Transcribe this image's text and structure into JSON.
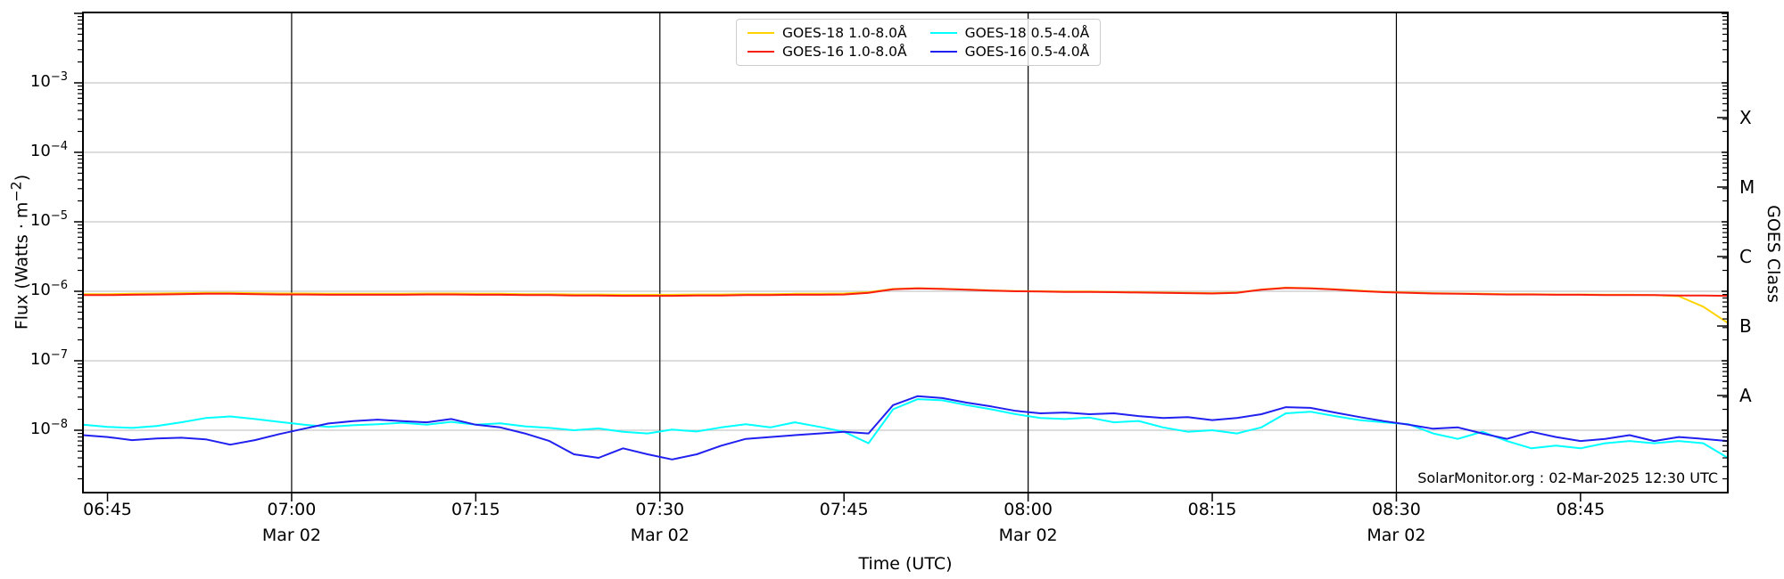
{
  "chart_data": {
    "type": "line",
    "title": "",
    "xlabel": "Time (UTC)",
    "ylabel_parts": {
      "pre": "Flux (Watts · m",
      "sup": "−2",
      "post": ")"
    },
    "y2label": "GOES Class",
    "y_axis": {
      "scale": "log",
      "base_text": "10",
      "tick_exponents": [
        -3,
        -4,
        -5,
        -6,
        -7,
        -8
      ],
      "ylim": [
        1.2e-09,
        0.01
      ],
      "grid": true
    },
    "x_axis": {
      "start": "06:43",
      "end": "08:57",
      "ticks": [
        {
          "time": "06:45",
          "date": ""
        },
        {
          "time": "07:00",
          "date": "Mar 02"
        },
        {
          "time": "07:15",
          "date": ""
        },
        {
          "time": "07:30",
          "date": "Mar 02"
        },
        {
          "time": "07:45",
          "date": ""
        },
        {
          "time": "08:00",
          "date": "Mar 02"
        },
        {
          "time": "08:15",
          "date": ""
        },
        {
          "time": "08:30",
          "date": "Mar 02"
        },
        {
          "time": "08:45",
          "date": ""
        }
      ],
      "vlines": [
        "07:00",
        "07:30",
        "08:00",
        "08:30"
      ]
    },
    "goes_classes": [
      {
        "label": "X",
        "center_exponent": -3.5
      },
      {
        "label": "M",
        "center_exponent": -4.5
      },
      {
        "label": "C",
        "center_exponent": -5.5
      },
      {
        "label": "B",
        "center_exponent": -6.5
      },
      {
        "label": "A",
        "center_exponent": -7.5
      }
    ],
    "legend_position": "top-center",
    "annotation": "SolarMonitor.org : 02-Mar-2025 12:30 UTC",
    "colors": {
      "goes18_long": "#ffd200",
      "goes16_long": "#f81e10",
      "goes18_short": "#00ffff",
      "goes16_short": "#2020f0",
      "grid": "#c8c8c8",
      "axis": "#000000"
    },
    "series": [
      {
        "name": "GOES-18 1.0-8.0Å",
        "color_key": "goes18_long",
        "start": "06:43",
        "step_min": 2,
        "values": [
          9.1e-07,
          9.1e-07,
          9.2e-07,
          9.3e-07,
          9.4e-07,
          9.5e-07,
          9.5e-07,
          9.4e-07,
          9.3e-07,
          9.3e-07,
          9.2e-07,
          9.2e-07,
          9.2e-07,
          9.2e-07,
          9.3e-07,
          9.3e-07,
          9.2e-07,
          9.2e-07,
          9.1e-07,
          9.1e-07,
          9e-07,
          9e-07,
          8.9e-07,
          8.9e-07,
          8.9e-07,
          9e-07,
          9e-07,
          9.1e-07,
          9.1e-07,
          9.2e-07,
          9.2e-07,
          9.3e-07,
          9.7e-07,
          1.08e-06,
          1.11e-06,
          1.09e-06,
          1.06e-06,
          1.03e-06,
          1.01e-06,
          1e-06,
          9.9e-07,
          9.9e-07,
          9.8e-07,
          9.7e-07,
          9.6e-07,
          9.5e-07,
          9.4e-07,
          9.6e-07,
          1.06e-06,
          1.13e-06,
          1.11e-06,
          1.07e-06,
          1.02e-06,
          9.8e-07,
          9.6e-07,
          9.4e-07,
          9.3e-07,
          9.2e-07,
          9.1e-07,
          9.1e-07,
          9e-07,
          9e-07,
          8.9e-07,
          8.9e-07,
          8.8e-07,
          8.5e-07,
          6e-07,
          3.5e-07
        ]
      },
      {
        "name": "GOES-16 1.0-8.0Å",
        "color_key": "goes16_long",
        "start": "06:43",
        "step_min": 2,
        "values": [
          8.8e-07,
          8.8e-07,
          8.9e-07,
          9e-07,
          9.1e-07,
          9.2e-07,
          9.2e-07,
          9.1e-07,
          9e-07,
          9e-07,
          8.9e-07,
          8.9e-07,
          8.9e-07,
          8.9e-07,
          9e-07,
          9e-07,
          8.9e-07,
          8.9e-07,
          8.8e-07,
          8.8e-07,
          8.7e-07,
          8.7e-07,
          8.6e-07,
          8.6e-07,
          8.6e-07,
          8.7e-07,
          8.7e-07,
          8.8e-07,
          8.8e-07,
          8.9e-07,
          8.9e-07,
          9e-07,
          9.5e-07,
          1.07e-06,
          1.1e-06,
          1.08e-06,
          1.05e-06,
          1.02e-06,
          1e-06,
          9.9e-07,
          9.8e-07,
          9.8e-07,
          9.7e-07,
          9.6e-07,
          9.5e-07,
          9.4e-07,
          9.3e-07,
          9.5e-07,
          1.05e-06,
          1.12e-06,
          1.1e-06,
          1.06e-06,
          1.01e-06,
          9.7e-07,
          9.5e-07,
          9.3e-07,
          9.2e-07,
          9.1e-07,
          9e-07,
          9e-07,
          8.9e-07,
          8.9e-07,
          8.8e-07,
          8.8e-07,
          8.8e-07,
          8.7e-07,
          8.7e-07,
          8.6e-07
        ]
      },
      {
        "name": "GOES-18 0.5-4.0Å",
        "color_key": "goes18_short",
        "start": "06:43",
        "step_min": 2,
        "values": [
          1.2e-08,
          1.12e-08,
          1.08e-08,
          1.15e-08,
          1.3e-08,
          1.5e-08,
          1.58e-08,
          1.45e-08,
          1.32e-08,
          1.2e-08,
          1.12e-08,
          1.18e-08,
          1.22e-08,
          1.28e-08,
          1.2e-08,
          1.32e-08,
          1.2e-08,
          1.26e-08,
          1.14e-08,
          1.08e-08,
          1e-08,
          1.06e-08,
          9.5e-09,
          9e-09,
          1.02e-08,
          9.6e-09,
          1.1e-08,
          1.22e-08,
          1.1e-08,
          1.3e-08,
          1.12e-08,
          9.5e-09,
          6.5e-09,
          2e-08,
          2.8e-08,
          2.7e-08,
          2.3e-08,
          2e-08,
          1.7e-08,
          1.5e-08,
          1.45e-08,
          1.52e-08,
          1.3e-08,
          1.36e-08,
          1.1e-08,
          9.5e-09,
          1e-08,
          9e-09,
          1.1e-08,
          1.75e-08,
          1.85e-08,
          1.6e-08,
          1.4e-08,
          1.3e-08,
          1.22e-08,
          9e-09,
          7.5e-09,
          9.5e-09,
          7e-09,
          5.5e-09,
          6e-09,
          5.5e-09,
          6.5e-09,
          7e-09,
          6.5e-09,
          7e-09,
          6.5e-09,
          4e-09
        ]
      },
      {
        "name": "GOES-16 0.5-4.0Å",
        "color_key": "goes16_short",
        "start": "06:43",
        "step_min": 2,
        "values": [
          8.5e-09,
          8e-09,
          7.2e-09,
          7.6e-09,
          7.8e-09,
          7.4e-09,
          6.2e-09,
          7.2e-09,
          8.8e-09,
          1.05e-08,
          1.25e-08,
          1.35e-08,
          1.42e-08,
          1.35e-08,
          1.3e-08,
          1.45e-08,
          1.2e-08,
          1.1e-08,
          9e-09,
          7e-09,
          4.5e-09,
          4e-09,
          5.5e-09,
          4.5e-09,
          3.8e-09,
          4.5e-09,
          6e-09,
          7.5e-09,
          8e-09,
          8.5e-09,
          9e-09,
          9.5e-09,
          9e-09,
          2.3e-08,
          3.1e-08,
          2.9e-08,
          2.5e-08,
          2.2e-08,
          1.9e-08,
          1.75e-08,
          1.8e-08,
          1.7e-08,
          1.75e-08,
          1.6e-08,
          1.5e-08,
          1.55e-08,
          1.4e-08,
          1.5e-08,
          1.7e-08,
          2.15e-08,
          2.1e-08,
          1.8e-08,
          1.55e-08,
          1.35e-08,
          1.2e-08,
          1.05e-08,
          1.1e-08,
          9e-09,
          7.5e-09,
          9.5e-09,
          8e-09,
          7e-09,
          7.5e-09,
          8.5e-09,
          7e-09,
          8e-09,
          7.5e-09,
          7e-09
        ]
      }
    ],
    "legend": [
      {
        "label": "GOES-18 1.0-8.0Å",
        "color_key": "goes18_long"
      },
      {
        "label": "GOES-16 1.0-8.0Å",
        "color_key": "goes16_long"
      },
      {
        "label": "GOES-18 0.5-4.0Å",
        "color_key": "goes18_short"
      },
      {
        "label": "GOES-16 0.5-4.0Å",
        "color_key": "goes16_short"
      }
    ]
  }
}
